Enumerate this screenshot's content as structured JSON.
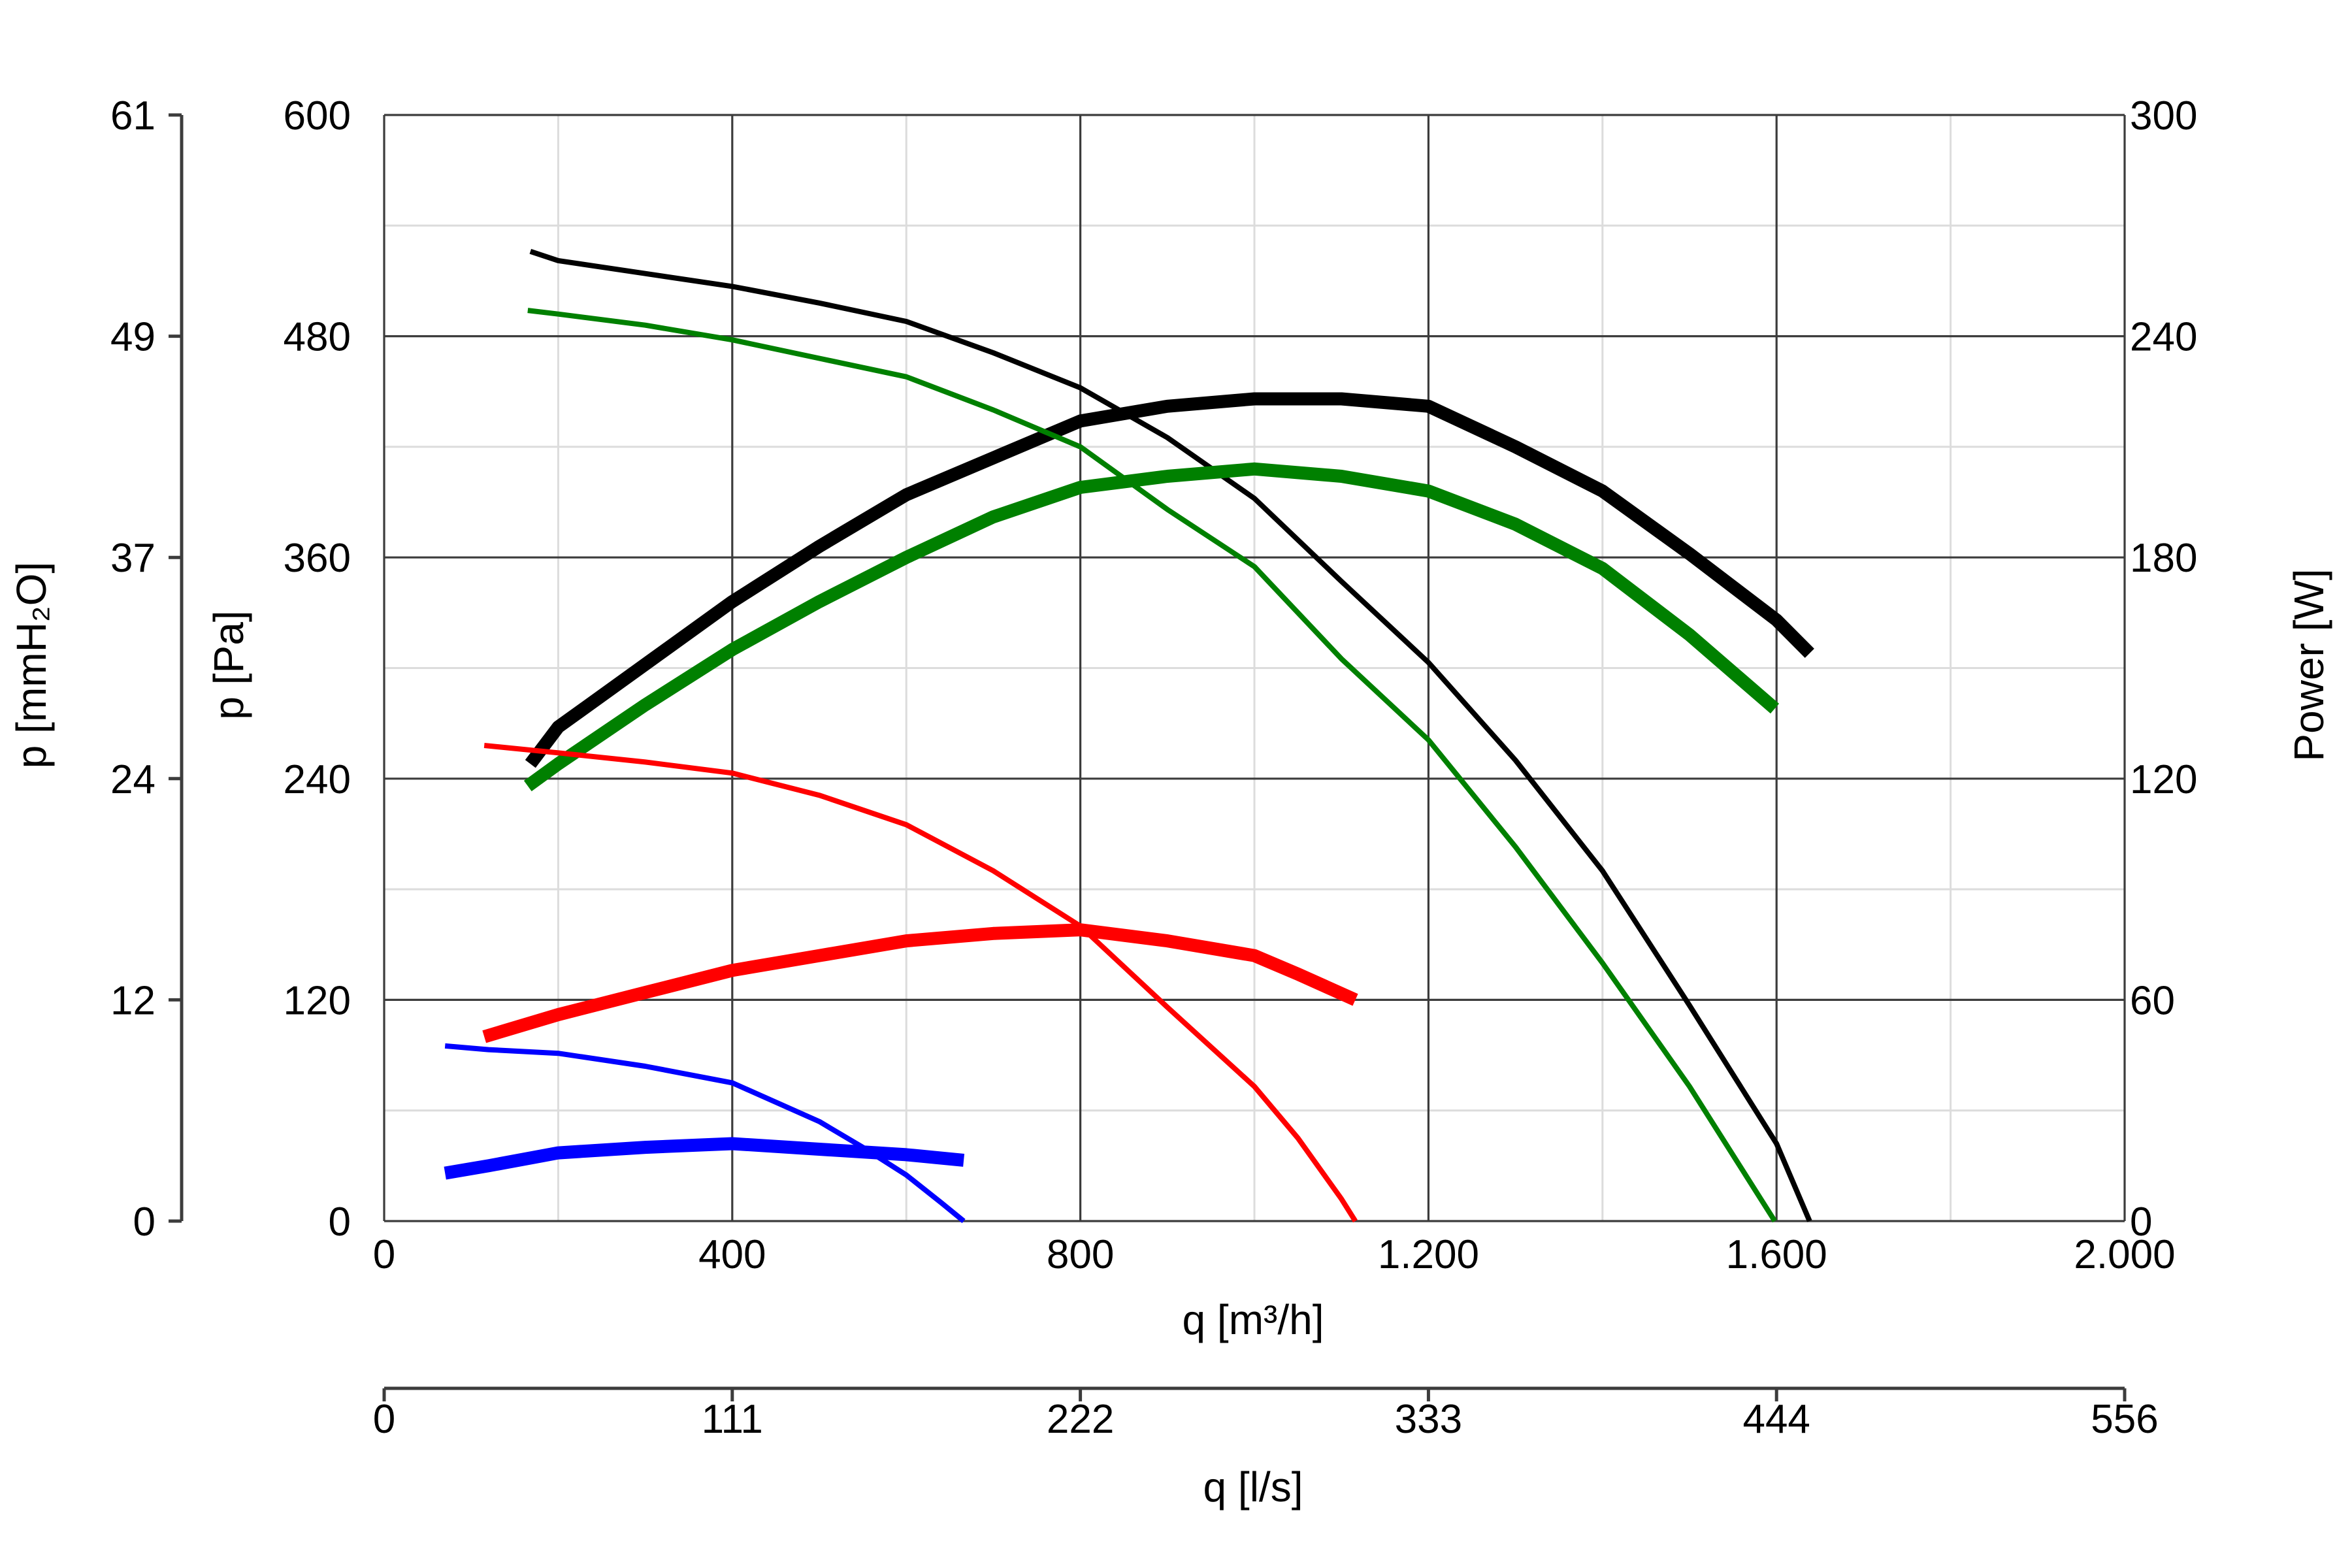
{
  "chart_data": {
    "type": "line",
    "x": {
      "label": "q [m³/h]",
      "range": [
        0,
        2000
      ],
      "ticks": [
        0,
        400,
        800,
        1200,
        1600,
        2000
      ],
      "tick_labels": [
        "0",
        "400",
        "800",
        "1.200",
        "1.600",
        "2.000"
      ]
    },
    "x2": {
      "label": "q [l/s]",
      "tick_labels": [
        "0",
        "111",
        "222",
        "333",
        "444",
        "556"
      ]
    },
    "y_left": {
      "label": "p [Pa]",
      "range": [
        0,
        600
      ],
      "ticks": [
        0,
        120,
        240,
        360,
        480,
        600
      ],
      "tick_labels": [
        "0",
        "120",
        "240",
        "360",
        "480",
        "600"
      ]
    },
    "y_left2": {
      "label": "p [mmH₂O]",
      "tick_labels": [
        "0",
        "12",
        "24",
        "37",
        "49",
        "61"
      ]
    },
    "y_right": {
      "label": "Power [W]",
      "range": [
        0,
        300
      ],
      "ticks": [
        0,
        60,
        120,
        180,
        240,
        300
      ],
      "tick_labels": [
        "0",
        "60",
        "120",
        "180",
        "240",
        "300"
      ]
    },
    "grid": true,
    "series": [
      {
        "color": "#000000",
        "kind": "pressure",
        "axis": "left",
        "points": [
          [
            168,
            526
          ],
          [
            200,
            521
          ],
          [
            300,
            514
          ],
          [
            400,
            507
          ],
          [
            500,
            498
          ],
          [
            600,
            488
          ],
          [
            700,
            471
          ],
          [
            800,
            452
          ],
          [
            900,
            425
          ],
          [
            1000,
            392
          ],
          [
            1100,
            347
          ],
          [
            1200,
            303
          ],
          [
            1300,
            250
          ],
          [
            1400,
            190
          ],
          [
            1500,
            117
          ],
          [
            1600,
            42
          ],
          [
            1638,
            0
          ]
        ]
      },
      {
        "color": "#000000",
        "kind": "power",
        "axis": "right",
        "points": [
          [
            168,
            124
          ],
          [
            200,
            134
          ],
          [
            300,
            151
          ],
          [
            400,
            168
          ],
          [
            500,
            183
          ],
          [
            600,
            197
          ],
          [
            700,
            207
          ],
          [
            800,
            217
          ],
          [
            900,
            221
          ],
          [
            1000,
            223
          ],
          [
            1100,
            223
          ],
          [
            1200,
            221
          ],
          [
            1300,
            210
          ],
          [
            1400,
            198
          ],
          [
            1500,
            181
          ],
          [
            1600,
            163
          ],
          [
            1638,
            154
          ]
        ]
      },
      {
        "color": "#008000",
        "kind": "pressure",
        "axis": "left",
        "points": [
          [
            165,
            494
          ],
          [
            200,
            492
          ],
          [
            300,
            486
          ],
          [
            400,
            478
          ],
          [
            500,
            468
          ],
          [
            600,
            458
          ],
          [
            700,
            440
          ],
          [
            800,
            420
          ],
          [
            900,
            386
          ],
          [
            1000,
            355
          ],
          [
            1100,
            305
          ],
          [
            1200,
            261
          ],
          [
            1300,
            203
          ],
          [
            1400,
            140
          ],
          [
            1500,
            73
          ],
          [
            1598,
            0
          ]
        ]
      },
      {
        "color": "#008000",
        "kind": "power",
        "axis": "right",
        "points": [
          [
            165,
            118
          ],
          [
            200,
            124
          ],
          [
            300,
            140
          ],
          [
            400,
            155
          ],
          [
            500,
            168
          ],
          [
            600,
            180
          ],
          [
            700,
            191
          ],
          [
            800,
            199
          ],
          [
            900,
            202
          ],
          [
            1000,
            204
          ],
          [
            1100,
            202
          ],
          [
            1200,
            198
          ],
          [
            1300,
            189
          ],
          [
            1400,
            177
          ],
          [
            1500,
            159
          ],
          [
            1598,
            139
          ]
        ]
      },
      {
        "color": "#ff0000",
        "kind": "pressure",
        "axis": "left",
        "points": [
          [
            115,
            258
          ],
          [
            200,
            254
          ],
          [
            300,
            249
          ],
          [
            400,
            243
          ],
          [
            500,
            231
          ],
          [
            600,
            215
          ],
          [
            700,
            190
          ],
          [
            800,
            160
          ],
          [
            900,
            116
          ],
          [
            1000,
            73
          ],
          [
            1050,
            45
          ],
          [
            1100,
            12
          ],
          [
            1116,
            0
          ]
        ]
      },
      {
        "color": "#ff0000",
        "kind": "power",
        "axis": "right",
        "points": [
          [
            115,
            50
          ],
          [
            200,
            56
          ],
          [
            300,
            62
          ],
          [
            400,
            68
          ],
          [
            500,
            72
          ],
          [
            600,
            76
          ],
          [
            700,
            78
          ],
          [
            800,
            79
          ],
          [
            900,
            76
          ],
          [
            1000,
            72
          ],
          [
            1050,
            67
          ],
          [
            1116,
            60
          ]
        ]
      },
      {
        "color": "#0000ff",
        "kind": "pressure",
        "axis": "left",
        "points": [
          [
            70,
            95
          ],
          [
            120,
            93
          ],
          [
            200,
            91
          ],
          [
            300,
            84
          ],
          [
            400,
            75
          ],
          [
            500,
            54
          ],
          [
            550,
            40
          ],
          [
            600,
            25
          ],
          [
            640,
            10
          ],
          [
            666,
            0
          ]
        ]
      },
      {
        "color": "#0000ff",
        "kind": "power",
        "axis": "right",
        "points": [
          [
            70,
            13
          ],
          [
            120,
            15
          ],
          [
            200,
            18.5
          ],
          [
            300,
            20
          ],
          [
            400,
            21
          ],
          [
            500,
            19.5
          ],
          [
            600,
            18
          ],
          [
            666,
            16.5
          ]
        ]
      }
    ]
  }
}
